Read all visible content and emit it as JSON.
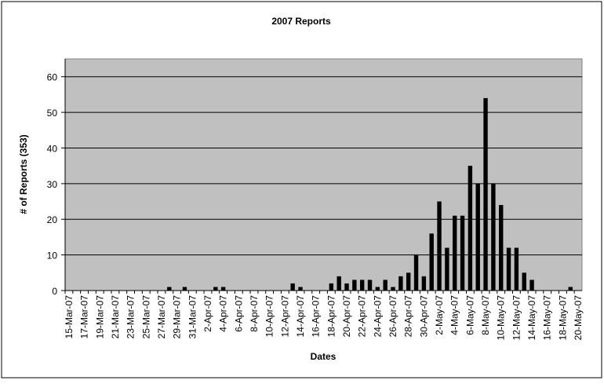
{
  "chart_data": {
    "type": "bar",
    "title": "2007 Reports",
    "x_label": "Dates",
    "y_label": "# of Reports (353)",
    "categories": [
      "15-Mar-07",
      null,
      "17-Mar-07",
      null,
      "19-Mar-07",
      null,
      "21-Mar-07",
      null,
      "23-Mar-07",
      null,
      "25-Mar-07",
      null,
      "27-Mar-07",
      null,
      "29-Mar-07",
      null,
      "31-Mar-07",
      null,
      "2-Apr-07",
      null,
      "4-Apr-07",
      null,
      "6-Apr-07",
      null,
      "8-Apr-07",
      null,
      "10-Apr-07",
      null,
      "12-Apr-07",
      null,
      "14-Apr-07",
      null,
      "16-Apr-07",
      null,
      "18-Apr-07",
      null,
      "20-Apr-07",
      null,
      "22-Apr-07",
      null,
      "24-Apr-07",
      null,
      "26-Apr-07",
      null,
      "28-Apr-07",
      null,
      "30-Apr-07",
      null,
      "2-May-07",
      null,
      "4-May-07",
      null,
      "6-May-07",
      null,
      "8-May-07",
      null,
      "10-May-07",
      null,
      "12-May-07",
      null,
      "14-May-07",
      null,
      "16-May-07",
      null,
      "18-May-07",
      null,
      "20-May-07"
    ],
    "values": [
      0,
      0,
      0,
      0,
      0,
      0,
      0,
      0,
      0,
      0,
      0,
      0,
      0,
      1,
      0,
      1,
      0,
      0,
      0,
      1,
      1,
      0,
      0,
      0,
      0,
      0,
      0,
      0,
      0,
      2,
      1,
      0,
      0,
      0,
      2,
      4,
      2,
      3,
      3,
      3,
      1,
      3,
      1,
      4,
      5,
      10,
      4,
      16,
      25,
      12,
      21,
      21,
      35,
      30,
      54,
      30,
      24,
      12,
      12,
      5,
      3,
      0,
      0,
      0,
      0,
      1,
      0
    ],
    "color": "#000000",
    "ylim": [
      0,
      65
    ],
    "yticks": [
      0,
      10,
      20,
      30,
      40,
      50,
      60
    ],
    "grid": true
  }
}
